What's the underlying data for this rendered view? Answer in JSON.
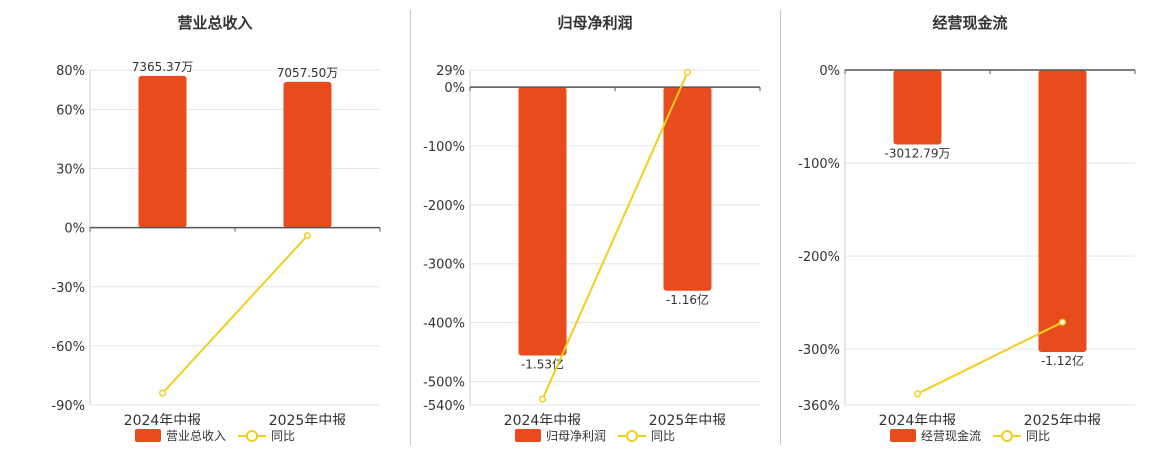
{
  "colors": {
    "bar": "#E84C1C",
    "line": "#F2CE1E",
    "grid": "#e4e4ec",
    "axis": "#555555"
  },
  "chart_data": [
    {
      "type": "bar",
      "title": "营业总收入",
      "categories": [
        "2024年中报",
        "2025年中报"
      ],
      "bar_series": {
        "name": "营业总收入",
        "values_pct": [
          77,
          74
        ],
        "labels": [
          "7365.37万",
          "7057.50万"
        ]
      },
      "line_series": {
        "name": "同比",
        "values_pct": [
          -84,
          -4
        ]
      },
      "y_ticks": [
        80,
        60,
        30,
        0,
        -30,
        -60,
        -90
      ],
      "y_tick_labels": [
        "80%",
        "60%",
        "30%",
        "0%",
        "-30%",
        "-60%",
        "-90%"
      ],
      "ylim": [
        -90,
        80
      ]
    },
    {
      "type": "bar",
      "title": "归母净利润",
      "categories": [
        "2024年中报",
        "2025年中报"
      ],
      "bar_series": {
        "name": "归母净利润",
        "values_pct": [
          -456,
          -346
        ],
        "labels": [
          "-1.53亿",
          "-1.16亿"
        ]
      },
      "line_series": {
        "name": "同比",
        "values_pct": [
          -530,
          25
        ]
      },
      "y_ticks": [
        29,
        0,
        -100,
        -200,
        -300,
        -400,
        -500,
        -540
      ],
      "y_tick_labels": [
        "29%",
        "0%",
        "-100%",
        "-200%",
        "-300%",
        "-400%",
        "-500%",
        "-540%"
      ],
      "ylim": [
        -540,
        29
      ]
    },
    {
      "type": "bar",
      "title": "经营现金流",
      "categories": [
        "2024年中报",
        "2025年中报"
      ],
      "bar_series": {
        "name": "经营现金流",
        "values_pct": [
          -80,
          -303
        ],
        "labels": [
          "-3012.79万",
          "-1.12亿"
        ]
      },
      "line_series": {
        "name": "同比",
        "values_pct": [
          -348,
          -271
        ]
      },
      "y_ticks": [
        0,
        -100,
        -200,
        -300,
        -360
      ],
      "y_tick_labels": [
        "0%",
        "-100%",
        "-200%",
        "-300%",
        "-360%"
      ],
      "ylim": [
        -360,
        0
      ]
    }
  ]
}
